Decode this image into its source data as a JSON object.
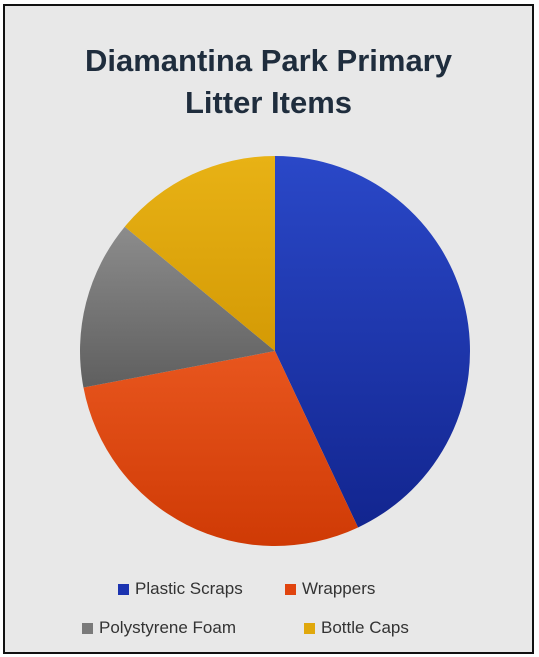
{
  "chart_data": {
    "type": "pie",
    "title": "Diamantina Park Primary Litter Items",
    "title_lines": [
      "Diamantina Park Primary",
      "Litter Items"
    ],
    "categories": [
      "Plastic Scraps",
      "Wrappers",
      "Polystyrene Foam",
      "Bottle Caps"
    ],
    "values": [
      43,
      29,
      14,
      14
    ],
    "colors": [
      "#1b33b0",
      "#e0440e",
      "#7a7a7a",
      "#e0a80c"
    ],
    "legend_position": "bottom",
    "grid": false
  }
}
